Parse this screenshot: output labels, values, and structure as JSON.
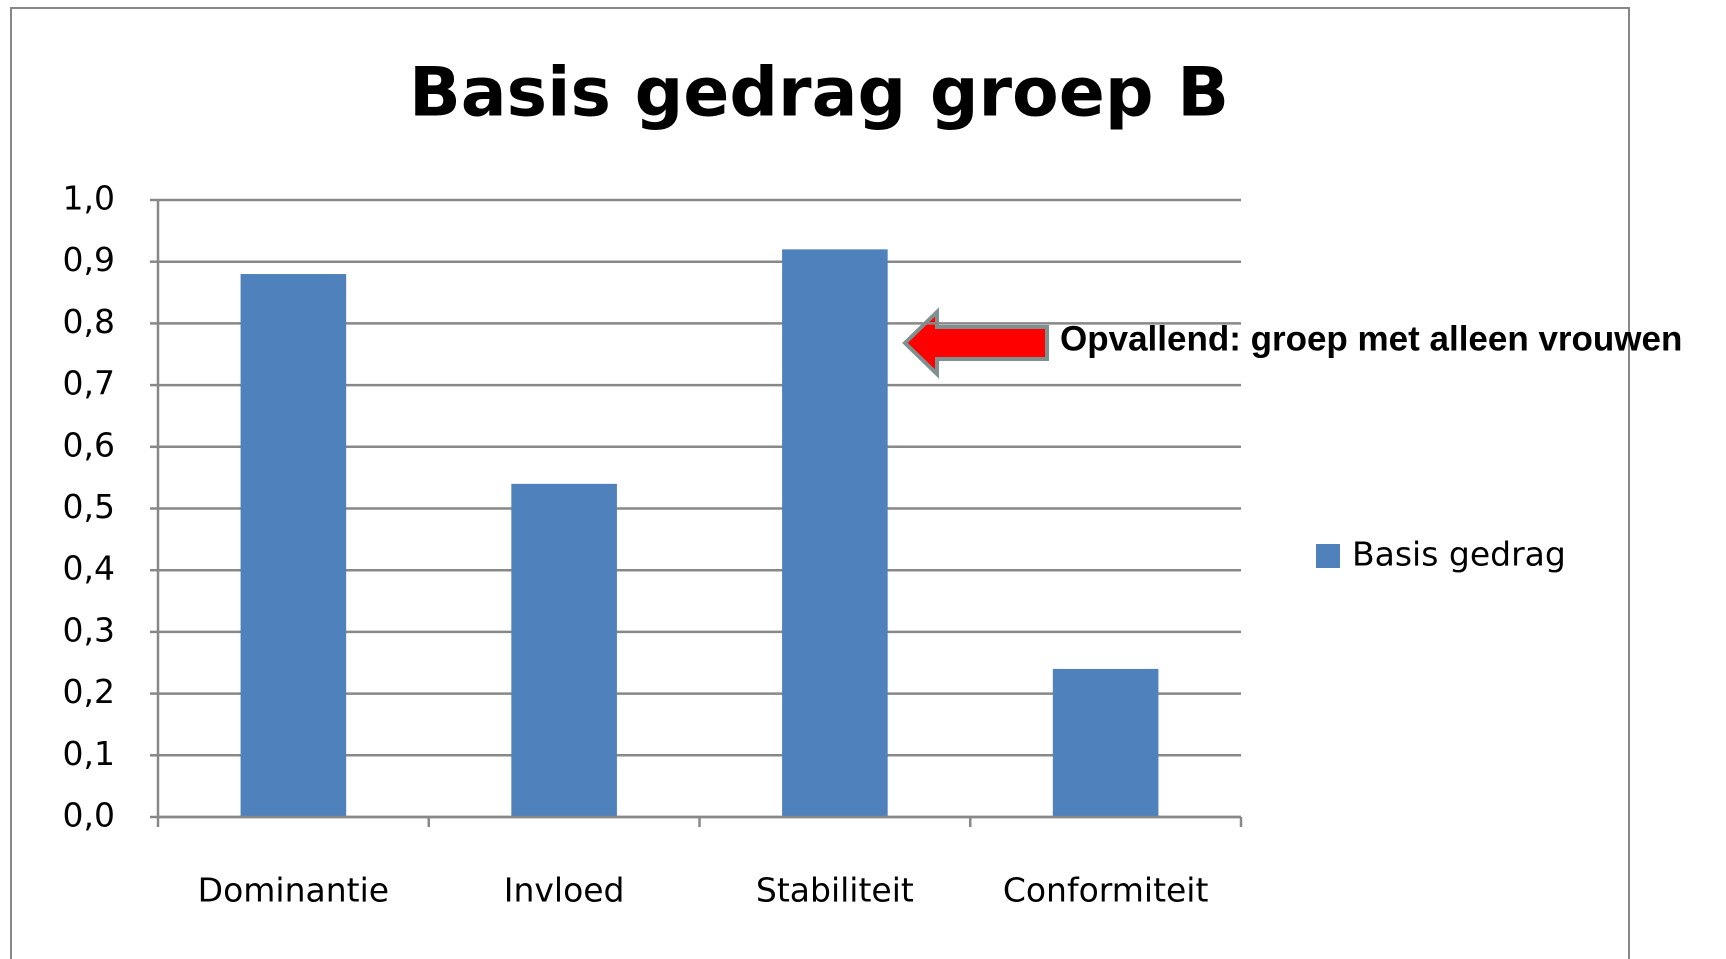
{
  "chart_data": {
    "type": "bar",
    "title": "Basis gedrag groep B",
    "categories": [
      "Dominantie",
      "Invloed",
      "Stabiliteit",
      "Conformiteit"
    ],
    "series": [
      {
        "name": "Basis gedrag",
        "color": "#4f81bd",
        "values": [
          0.88,
          0.54,
          0.92,
          0.24
        ]
      }
    ],
    "ylim": [
      0,
      1
    ],
    "yticks": [
      {
        "value": 0,
        "label": "0,0"
      },
      {
        "value": 0.1,
        "label": "0,1"
      },
      {
        "value": 0.2,
        "label": "0,2"
      },
      {
        "value": 0.3,
        "label": "0,3"
      },
      {
        "value": 0.4,
        "label": "0,4"
      },
      {
        "value": 0.5,
        "label": "0,5"
      },
      {
        "value": 0.6,
        "label": "0,6"
      },
      {
        "value": 0.7,
        "label": "0,7"
      },
      {
        "value": 0.8,
        "label": "0,8"
      },
      {
        "value": 0.9,
        "label": "0,9"
      },
      {
        "value": 1,
        "label": "1,0"
      }
    ],
    "grid": true,
    "legend": "right",
    "annotation": "Opvallend: groep met alleen vrouwen"
  }
}
